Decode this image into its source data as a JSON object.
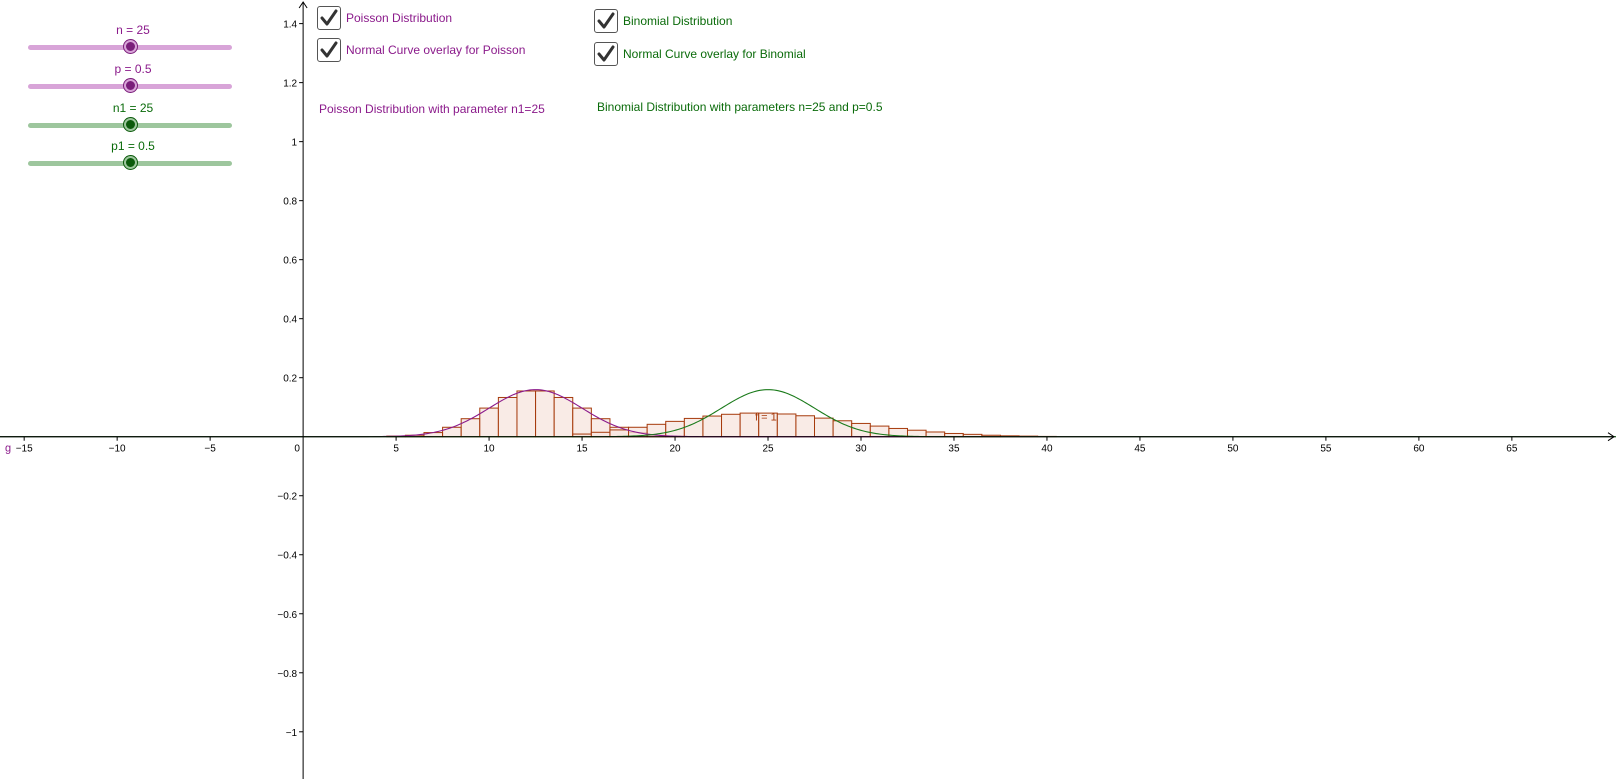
{
  "sliders": [
    {
      "label": "n = 25",
      "value": 25,
      "min": 0,
      "max": 50,
      "track_color": "#d8a4d8",
      "knob_color": "#7a1e7a",
      "label_color": "#8b1a8b"
    },
    {
      "label": "p = 0.5",
      "value": 0.5,
      "min": 0,
      "max": 1,
      "track_color": "#d8a4d8",
      "knob_color": "#7a1e7a",
      "label_color": "#8b1a8b"
    },
    {
      "label": "n1 = 25",
      "value": 25,
      "min": 0,
      "max": 50,
      "track_color": "#9dc69d",
      "knob_color": "#0b5a0b",
      "label_color": "#0a6b0a"
    },
    {
      "label": "p1 = 0.5",
      "value": 0.5,
      "min": 0,
      "max": 1,
      "track_color": "#9dc69d",
      "knob_color": "#0b5a0b",
      "label_color": "#0a6b0a"
    }
  ],
  "checkboxes": {
    "poisson": {
      "label": "Poisson Distribution",
      "checked": true,
      "color": "#8b1a8b"
    },
    "poisson_normal": {
      "label": "Normal Curve overlay for Poisson",
      "checked": true,
      "color": "#8b1a8b"
    },
    "binomial": {
      "label": "Binomial Distribution",
      "checked": true,
      "color": "#0a6b0a"
    },
    "binomial_normal": {
      "label": "Normal Curve overlay for Binomial",
      "checked": true,
      "color": "#0a6b0a"
    }
  },
  "notes": {
    "poisson": "Poisson Distribution with parameter n1=25",
    "binomial": "Binomial Distribution with parameters n=25 and p=0.5"
  },
  "graph_labels": {
    "function_label": "f = 1",
    "g_label": "g"
  },
  "colors": {
    "bar_edge": "#a63a0c",
    "bar_fill": "#f8e6e0",
    "poisson_curve": "#8b1a8b",
    "binomial_curve": "#1a7a1a",
    "axis": "#000000"
  },
  "chart_data": {
    "type": "bar",
    "xlim": [
      -16.3,
      70.6
    ],
    "ylim": [
      -1.16,
      1.48
    ],
    "x_ticks": [
      -15,
      -10,
      -5,
      0,
      5,
      10,
      15,
      20,
      25,
      30,
      35,
      40,
      45,
      50,
      55,
      60,
      65
    ],
    "y_ticks": [
      -1,
      -0.8,
      -0.6,
      -0.4,
      -0.2,
      0.2,
      0.4,
      0.6,
      0.8,
      1,
      1.2,
      1.4
    ],
    "x_tick_labels": [
      "−15",
      "−10",
      "−5",
      "0",
      "5",
      "10",
      "15",
      "20",
      "25",
      "30",
      "35",
      "40",
      "45",
      "50",
      "55",
      "60",
      "65"
    ],
    "y_tick_labels": [
      "−1",
      "−0.8",
      "−0.6",
      "−0.4",
      "−0.2",
      "0.2",
      "0.4",
      "0.6",
      "0.8",
      "1",
      "1.2",
      "1.4"
    ],
    "grid": false,
    "series": [
      {
        "kind": "histogram",
        "x": [
          5,
          6,
          7,
          8,
          9,
          10,
          11,
          12,
          13,
          14,
          15,
          16,
          17,
          18,
          19,
          20
        ],
        "values": [
          0.002,
          0.005,
          0.014,
          0.032,
          0.061,
          0.097,
          0.133,
          0.155,
          0.155,
          0.133,
          0.097,
          0.061,
          0.032,
          0.014,
          0.005,
          0.002
        ]
      },
      {
        "kind": "histogram",
        "x": [
          15,
          16,
          17,
          18,
          19,
          20,
          21,
          22,
          23,
          24,
          25,
          26,
          27,
          28,
          29,
          30,
          31,
          32,
          33,
          34,
          35,
          36,
          37,
          38,
          39,
          40
        ],
        "values": [
          0.009,
          0.015,
          0.023,
          0.032,
          0.042,
          0.052,
          0.062,
          0.07,
          0.076,
          0.08,
          0.08,
          0.077,
          0.071,
          0.063,
          0.054,
          0.045,
          0.036,
          0.028,
          0.022,
          0.016,
          0.011,
          0.008,
          0.005,
          0.003,
          0.002,
          0.001
        ]
      },
      {
        "kind": "normal_curve",
        "mean": 12.5,
        "sd": 2.5
      },
      {
        "kind": "normal_curve",
        "mean": 25,
        "sd": 2.5
      }
    ]
  }
}
